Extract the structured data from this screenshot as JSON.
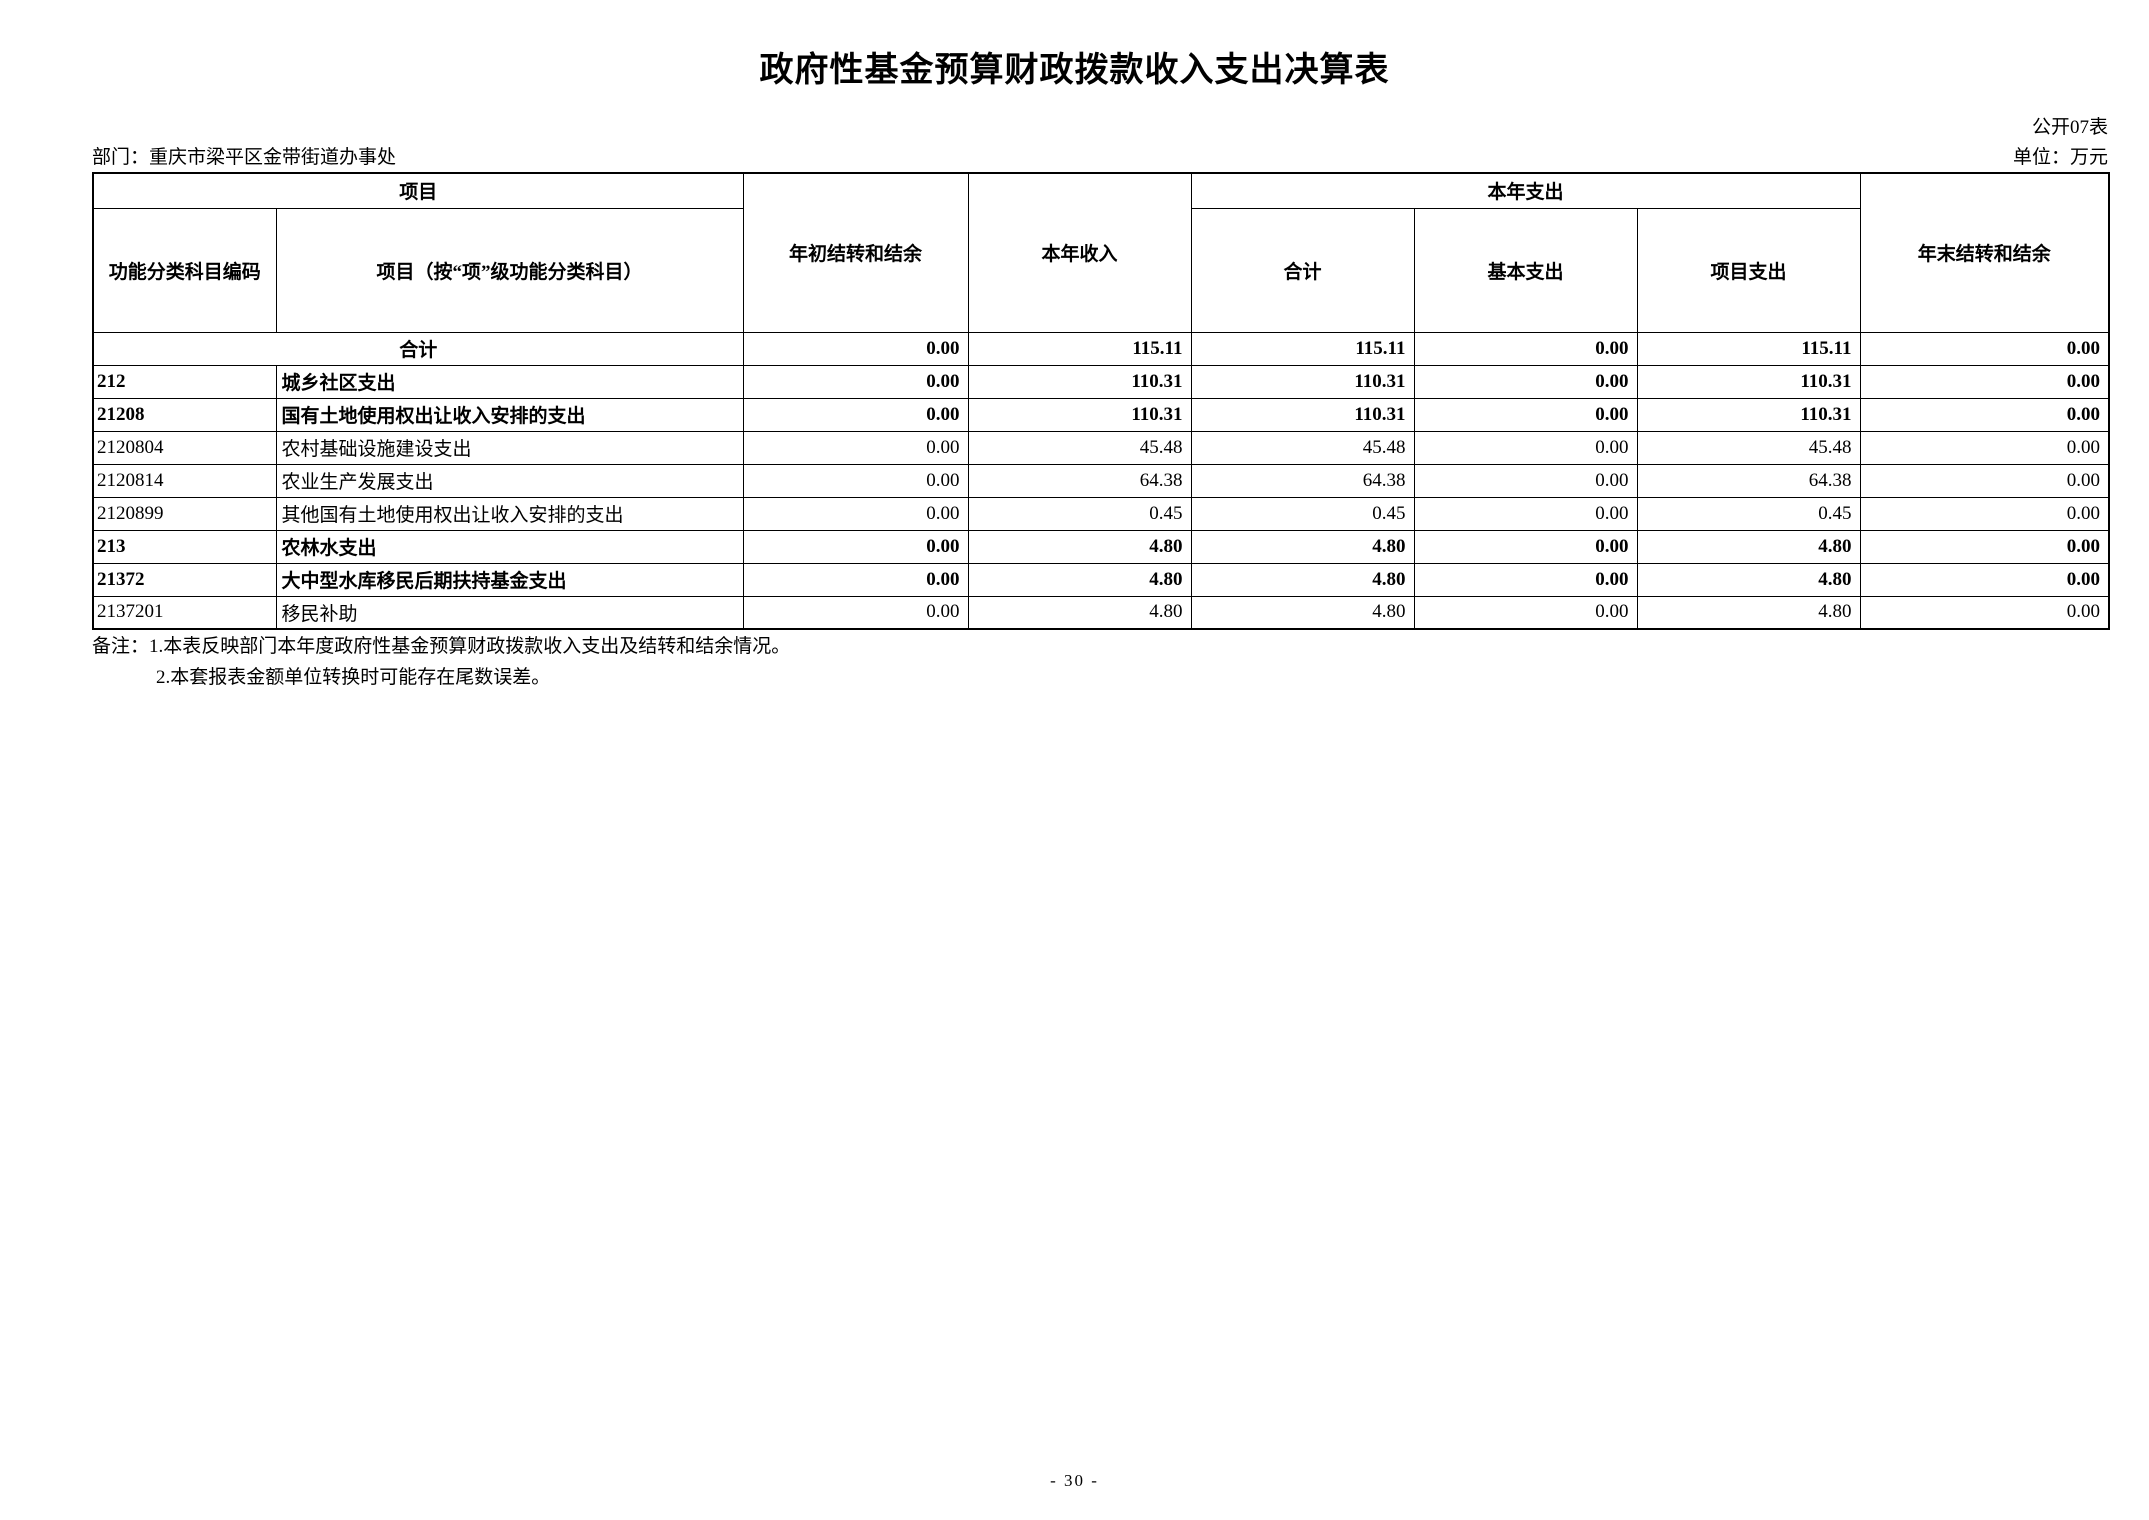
{
  "page": {
    "title": "政府性基金预算财政拨款收入支出决算表",
    "table_code": "公开07表",
    "department_label": "部门：重庆市梁平区金带街道办事处",
    "unit_label": "单位：万元",
    "page_number": "- 30 -"
  },
  "table": {
    "headers": {
      "item_group": "项目",
      "code": "功能分类科目编码",
      "item_name": "项目（按“项”级功能分类科目）",
      "beginning_balance": "年初结转和结余",
      "current_income": "本年收入",
      "current_expenditure_group": "本年支出",
      "expenditure_total": "合计",
      "basic_expenditure": "基本支出",
      "project_expenditure": "项目支出",
      "ending_balance": "年末结转和结余"
    },
    "rows": [
      {
        "total": true,
        "bold": true,
        "code": "",
        "name": "合计",
        "values": [
          "0.00",
          "115.11",
          "115.11",
          "0.00",
          "115.11",
          "0.00"
        ]
      },
      {
        "total": false,
        "bold": true,
        "code": "212",
        "name": "城乡社区支出",
        "values": [
          "0.00",
          "110.31",
          "110.31",
          "0.00",
          "110.31",
          "0.00"
        ]
      },
      {
        "total": false,
        "bold": true,
        "code": "21208",
        "name": "国有土地使用权出让收入安排的支出",
        "values": [
          "0.00",
          "110.31",
          "110.31",
          "0.00",
          "110.31",
          "0.00"
        ]
      },
      {
        "total": false,
        "bold": false,
        "code": "2120804",
        "name": "农村基础设施建设支出",
        "values": [
          "0.00",
          "45.48",
          "45.48",
          "0.00",
          "45.48",
          "0.00"
        ]
      },
      {
        "total": false,
        "bold": false,
        "code": "2120814",
        "name": "农业生产发展支出",
        "values": [
          "0.00",
          "64.38",
          "64.38",
          "0.00",
          "64.38",
          "0.00"
        ]
      },
      {
        "total": false,
        "bold": false,
        "code": "2120899",
        "name": "其他国有土地使用权出让收入安排的支出",
        "values": [
          "0.00",
          "0.45",
          "0.45",
          "0.00",
          "0.45",
          "0.00"
        ]
      },
      {
        "total": false,
        "bold": true,
        "code": "213",
        "name": "农林水支出",
        "values": [
          "0.00",
          "4.80",
          "4.80",
          "0.00",
          "4.80",
          "0.00"
        ]
      },
      {
        "total": false,
        "bold": true,
        "code": "21372",
        "name": "大中型水库移民后期扶持基金支出",
        "values": [
          "0.00",
          "4.80",
          "4.80",
          "0.00",
          "4.80",
          "0.00"
        ]
      },
      {
        "total": false,
        "bold": false,
        "code": "2137201",
        "name": "移民补助",
        "values": [
          "0.00",
          "4.80",
          "4.80",
          "0.00",
          "4.80",
          "0.00"
        ]
      }
    ]
  },
  "notes": {
    "line1": "备注：1.本表反映部门本年度政府性基金预算财政拨款收入支出及结转和结余情况。",
    "line2": "2.本套报表金额单位转换时可能存在尾数误差。"
  }
}
